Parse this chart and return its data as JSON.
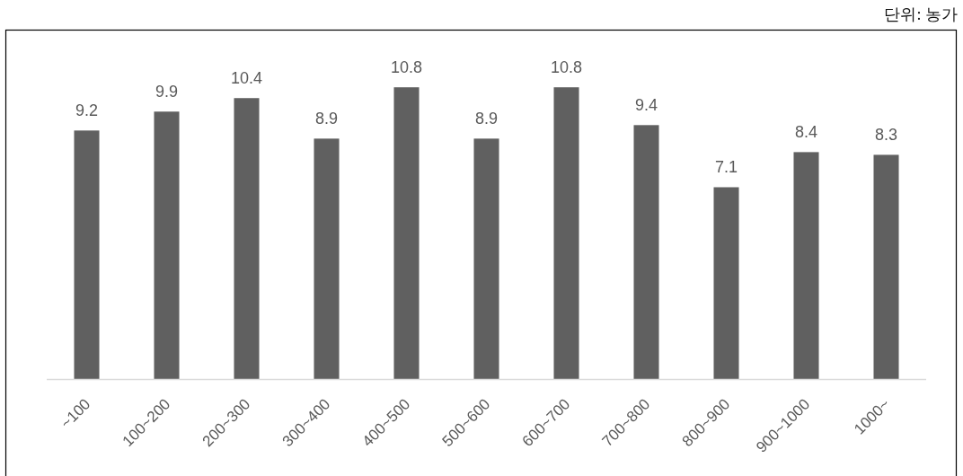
{
  "chart_data": {
    "type": "bar",
    "categories": [
      "~100",
      "100~200",
      "200~300",
      "300~400",
      "400~500",
      "500~600",
      "600~700",
      "700~800",
      "800~900",
      "900~1000",
      "1000~"
    ],
    "values": [
      9.2,
      9.9,
      10.4,
      8.9,
      10.8,
      8.9,
      10.8,
      9.4,
      7.1,
      8.4,
      8.3
    ],
    "color": "#606060",
    "data_labels": true,
    "annotations": [
      "단위: 농가"
    ]
  }
}
